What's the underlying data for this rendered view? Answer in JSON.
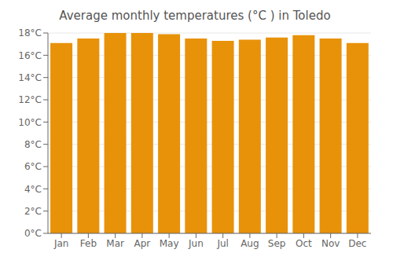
{
  "chart_data": {
    "type": "bar",
    "title": "Average monthly temperatures (°C ) in Toledo",
    "categories": [
      "Jan",
      "Feb",
      "Mar",
      "Apr",
      "May",
      "Jun",
      "Jul",
      "Aug",
      "Sep",
      "Oct",
      "Nov",
      "Dec"
    ],
    "values": [
      17.1,
      17.5,
      18.0,
      18.0,
      17.9,
      17.5,
      17.3,
      17.4,
      17.6,
      17.8,
      17.5,
      17.1
    ],
    "color": "#E8920A",
    "ylim": [
      0,
      18
    ],
    "yticks": [
      {
        "value": 0,
        "label": "0°C"
      },
      {
        "value": 2,
        "label": "2°C"
      },
      {
        "value": 4,
        "label": "4°C"
      },
      {
        "value": 6,
        "label": "6°C"
      },
      {
        "value": 8,
        "label": "8°C"
      },
      {
        "value": 10,
        "label": "10°C"
      },
      {
        "value": 12,
        "label": "12°C"
      },
      {
        "value": 14,
        "label": "14°C"
      },
      {
        "value": 16,
        "label": "16°C"
      },
      {
        "value": 18,
        "label": "18°C"
      }
    ],
    "grid": true
  }
}
